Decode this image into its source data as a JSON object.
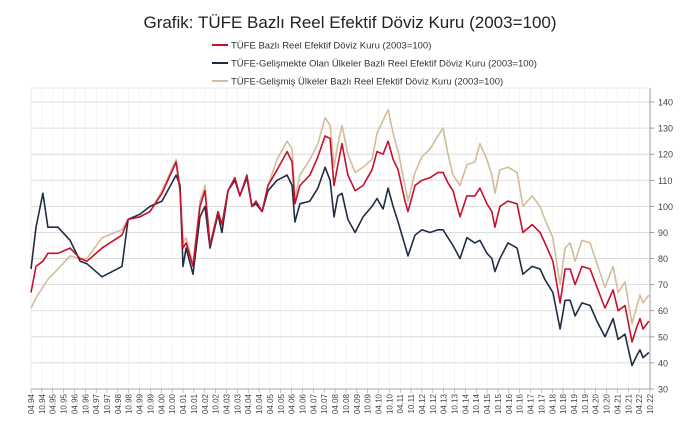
{
  "chart_data": {
    "type": "line",
    "title": "Grafik: TÜFE  Bazlı Reel Efektif Döviz Kuru (2003=100)",
    "xlabel": "",
    "ylabel": "",
    "ylim": [
      30,
      140
    ],
    "yticks": [
      30,
      40,
      50,
      60,
      70,
      80,
      90,
      100,
      110,
      120,
      130,
      140
    ],
    "y_axis_side": "right",
    "grid": true,
    "legend_position": "top-center",
    "xlim": [
      1994.25,
      2022.75
    ],
    "xtick_labels": [
      "04.94",
      "10.94",
      "04.95",
      "10.95",
      "04.96",
      "10.96",
      "04.97",
      "10.97",
      "04.98",
      "10.98",
      "04.99",
      "10.99",
      "04.00",
      "10.00",
      "04.01",
      "10.01",
      "04.02",
      "10.02",
      "04.03",
      "10.03",
      "04.04",
      "10.04",
      "04.05",
      "10.05",
      "04.06",
      "10.06",
      "04.07",
      "10.07",
      "04.08",
      "10.08",
      "04.09",
      "10.09",
      "04.10",
      "10.10",
      "04.11",
      "10.11",
      "04.12",
      "10.12",
      "04.13",
      "10.13",
      "04.14",
      "10.14",
      "04.15",
      "10.15",
      "04.16",
      "10.16",
      "04.17",
      "10.17",
      "04.18",
      "10.18",
      "04.19",
      "10.19",
      "04.20",
      "10.20",
      "04.21",
      "10.21",
      "04.22",
      "10.22"
    ],
    "x": [
      1994.25,
      1994.48,
      1994.8,
      1995.03,
      1995.49,
      1996.05,
      1996.51,
      1996.83,
      1997.52,
      1998.44,
      1998.72,
      1999.27,
      1999.73,
      2000.28,
      2000.93,
      2001.11,
      2001.25,
      2001.39,
      2001.71,
      2002.03,
      2002.26,
      2002.49,
      2002.86,
      2003.04,
      2003.32,
      2003.64,
      2003.87,
      2004.19,
      2004.42,
      2004.61,
      2004.89,
      2005.16,
      2005.58,
      2006.04,
      2006.27,
      2006.4,
      2006.63,
      2007.09,
      2007.46,
      2007.79,
      2008.02,
      2008.2,
      2008.38,
      2008.57,
      2008.84,
      2009.17,
      2009.54,
      2009.95,
      2010.18,
      2010.46,
      2010.69,
      2010.92,
      2011.15,
      2011.47,
      2011.61,
      2011.93,
      2012.25,
      2012.62,
      2012.99,
      2013.22,
      2013.45,
      2013.68,
      2014.0,
      2014.32,
      2014.69,
      2014.92,
      2015.24,
      2015.47,
      2015.61,
      2015.84,
      2016.21,
      2016.63,
      2016.9,
      2017.32,
      2017.69,
      2017.91,
      2018.28,
      2018.61,
      2018.84,
      2019.07,
      2019.3,
      2019.62,
      2019.99,
      2020.31,
      2020.68,
      2021.05,
      2021.28,
      2021.6,
      2021.92,
      2022.15,
      2022.29,
      2022.43,
      2022.7
    ],
    "series": [
      {
        "name": "TÜFE  Bazlı Reel Efektif Döviz Kuru (2003=100)",
        "color": "#c8102e",
        "values": [
          67,
          77,
          79,
          82,
          82,
          84,
          80,
          79,
          84,
          89,
          95,
          96,
          98,
          105,
          117,
          106,
          84,
          86,
          77,
          100,
          106,
          85,
          98,
          93,
          106,
          111,
          104,
          112,
          100,
          102,
          98,
          108,
          114,
          121,
          117,
          101,
          108,
          112,
          119,
          127,
          126,
          108,
          116,
          124,
          112,
          106,
          108,
          114,
          121,
          120,
          125,
          118,
          114,
          102,
          98,
          108,
          110,
          111,
          113,
          113,
          109,
          106,
          96,
          104,
          104,
          107,
          101,
          98,
          92,
          100,
          102,
          101,
          90,
          93,
          90,
          86,
          79,
          63,
          76,
          76,
          70,
          77,
          76,
          69,
          61,
          68,
          60,
          62,
          48,
          54,
          57,
          53,
          56
        ]
      },
      {
        "name": "TÜFE-Gelişmekte Olan Ülkeler Bazlı Reel Efektif Döviz Kuru (2003=100)",
        "color": "#1f2d44",
        "values": [
          76,
          92,
          105,
          92,
          92,
          87,
          79,
          78,
          73,
          77,
          95,
          97,
          100,
          102,
          112,
          108,
          77,
          84,
          74,
          96,
          100,
          84,
          97,
          90,
          106,
          110,
          104,
          111,
          100,
          101,
          98,
          106,
          110,
          112,
          108,
          94,
          101,
          102,
          107,
          115,
          110,
          96,
          104,
          105,
          95,
          90,
          96,
          100,
          103,
          99,
          107,
          100,
          94,
          85,
          81,
          89,
          91,
          90,
          91,
          91,
          88,
          85,
          80,
          88,
          86,
          87,
          82,
          80,
          75,
          80,
          86,
          84,
          74,
          77,
          76,
          72,
          67,
          53,
          64,
          64,
          58,
          63,
          62,
          56,
          50,
          57,
          49,
          51,
          39,
          43,
          45,
          42,
          44
        ]
      },
      {
        "name": "TÜFE-Gelişmiş Ülkeler Bazlı Reel Efektif Döviz Kuru (2003=100)",
        "color": "#d4bc9a",
        "values": [
          61,
          65,
          69,
          72,
          76,
          81,
          80,
          80,
          88,
          91,
          95,
          96,
          98,
          106,
          118,
          108,
          86,
          88,
          78,
          102,
          108,
          85,
          98,
          93,
          106,
          111,
          104,
          112,
          100,
          102,
          98,
          108,
          118,
          125,
          122,
          103,
          112,
          118,
          124,
          134,
          131,
          115,
          124,
          131,
          120,
          113,
          115,
          118,
          128,
          133,
          137,
          128,
          121,
          108,
          102,
          113,
          119,
          122,
          127,
          130,
          120,
          112,
          108,
          116,
          117,
          124,
          118,
          112,
          105,
          114,
          115,
          113,
          100,
          104,
          100,
          95,
          88,
          70,
          84,
          86,
          79,
          87,
          86,
          78,
          69,
          77,
          67,
          71,
          55,
          62,
          66,
          63,
          66
        ]
      }
    ]
  }
}
